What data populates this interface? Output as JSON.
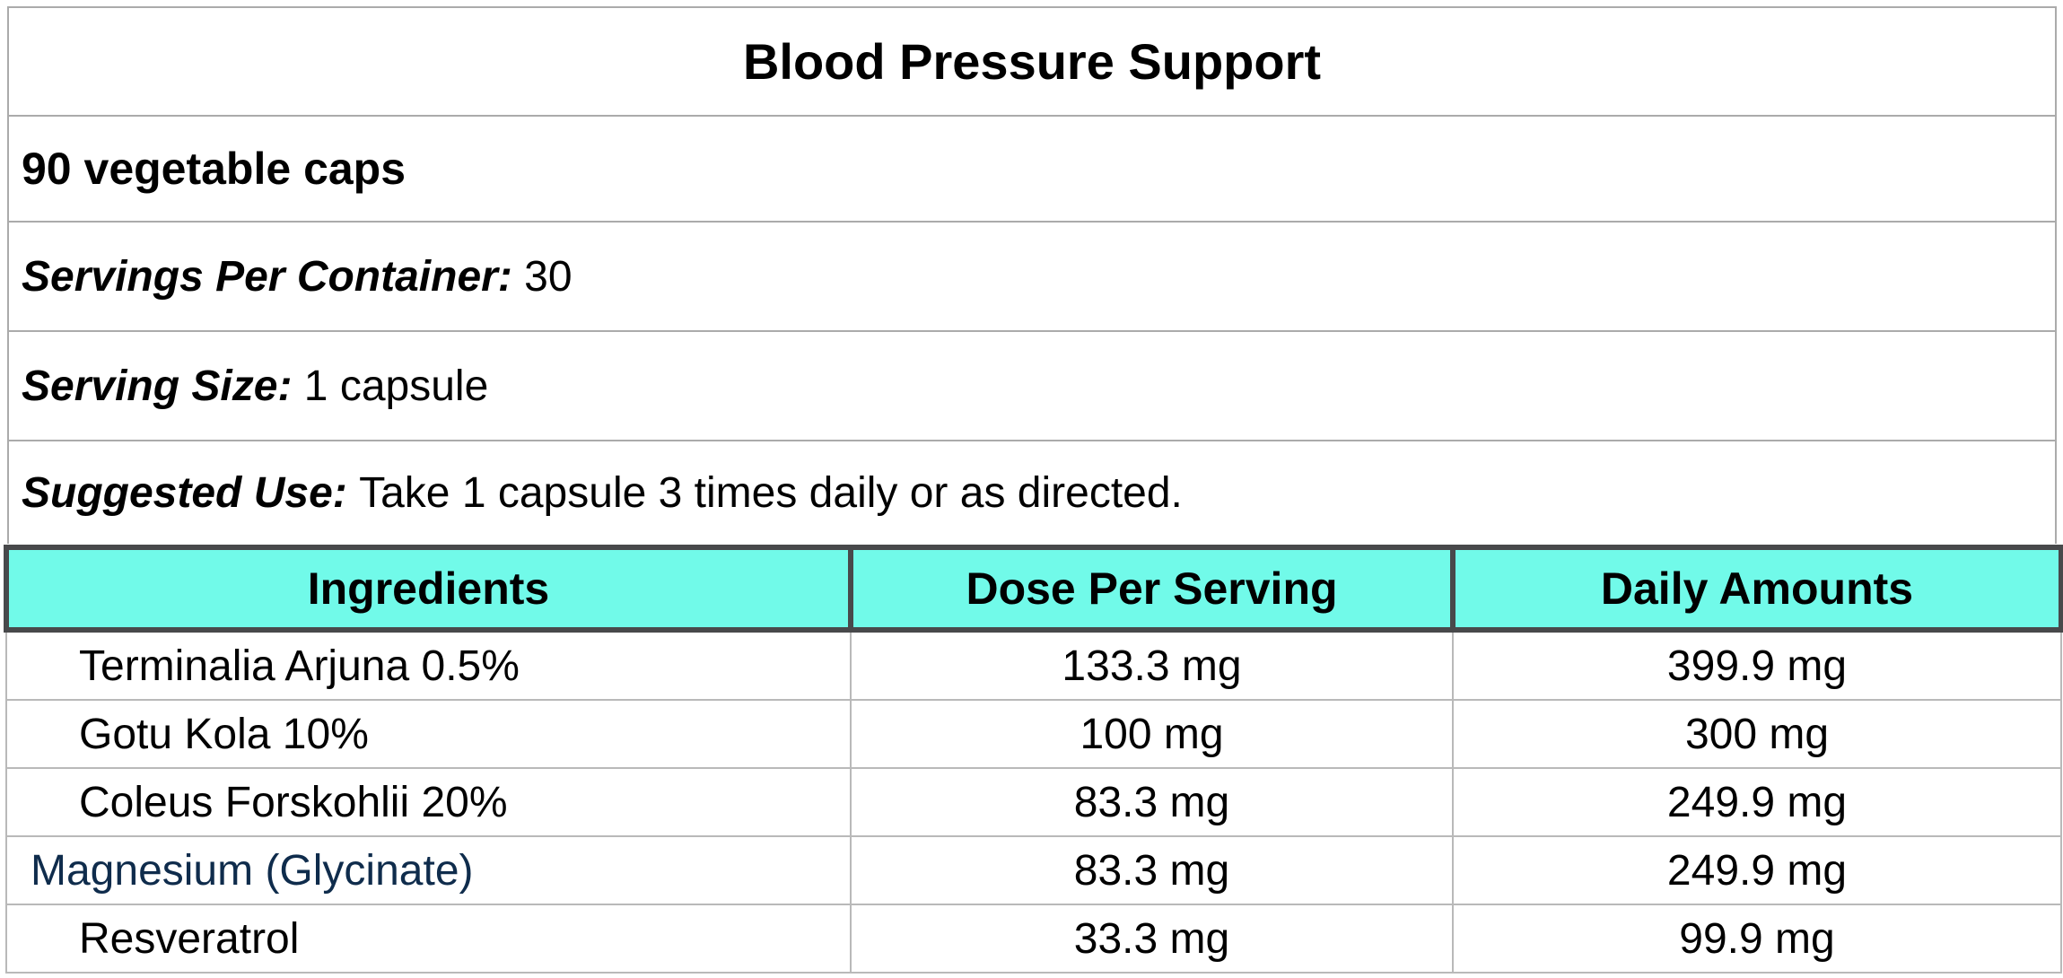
{
  "title": "Blood Pressure Support",
  "subtitle": "90 vegetable caps",
  "info_rows": [
    {
      "label": "Servings Per Container:",
      "value": "30"
    },
    {
      "label": "Serving Size:",
      "value": "1 capsule"
    },
    {
      "label": "Suggested Use:",
      "value": "Take 1 capsule 3 times daily or as directed."
    }
  ],
  "table": {
    "columns": [
      "Ingredients",
      "Dose Per Serving",
      "Daily Amounts"
    ],
    "rows": [
      {
        "ingredient": "Terminalia Arjuna 0.5%",
        "dose": "133.3 mg",
        "daily": "399.9 mg",
        "link": false
      },
      {
        "ingredient": "Gotu Kola 10%",
        "dose": "100 mg",
        "daily": "300 mg",
        "link": false
      },
      {
        "ingredient": "Coleus Forskohlii 20%",
        "dose": "83.3 mg",
        "daily": "249.9 mg",
        "link": false
      },
      {
        "ingredient": "Magnesium (Glycinate)",
        "dose": "83.3 mg",
        "daily": "249.9 mg",
        "link": true
      },
      {
        "ingredient": "Resveratrol",
        "dose": "33.3 mg",
        "daily": "99.9 mg",
        "link": false
      }
    ]
  },
  "colors": {
    "header_bg": "#71FAE9",
    "header_border": "#48494B",
    "grid_line": "#ABABAB",
    "link_text": "#0F2C4C"
  }
}
